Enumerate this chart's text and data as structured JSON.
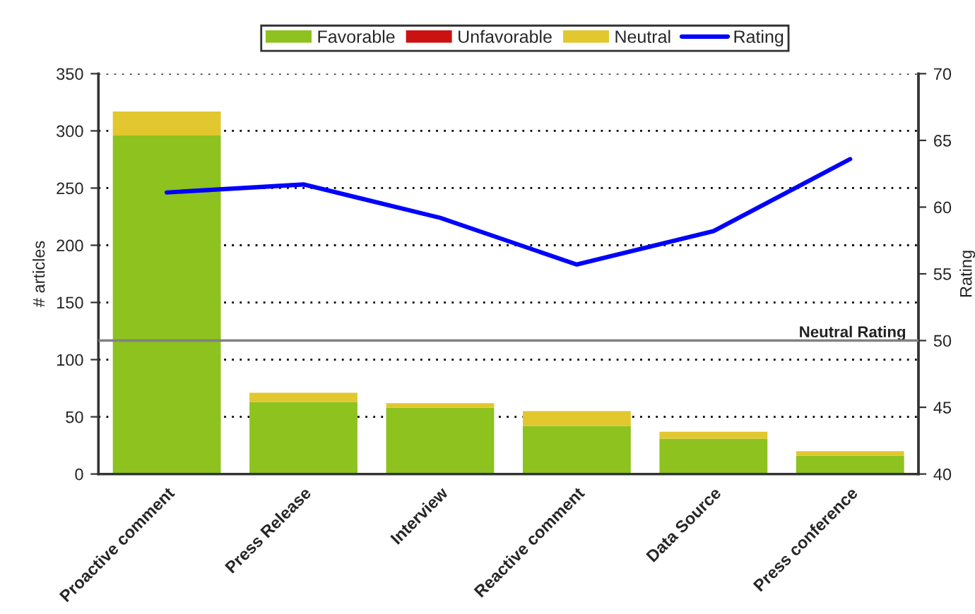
{
  "chart_data": {
    "type": "bar",
    "stacked": true,
    "categories": [
      "Proactive comment",
      "Press Release",
      "Interview",
      "Reactive comment",
      "Data Source",
      "Press conference"
    ],
    "series": [
      {
        "name": "Favorable",
        "color": "#8dc21f",
        "values": [
          296,
          63,
          58,
          42,
          31,
          16
        ]
      },
      {
        "name": "Unfavorable",
        "color": "#cc1111",
        "values": [
          0,
          0,
          0,
          0,
          0,
          0
        ]
      },
      {
        "name": "Neutral",
        "color": "#e2c72e",
        "values": [
          21,
          8,
          4,
          13,
          6,
          4
        ]
      },
      {
        "name": "Rating",
        "type": "line",
        "axis": "y2",
        "color": "#0000ff",
        "values": [
          61.1,
          61.7,
          59.2,
          55.7,
          58.2,
          63.6
        ]
      }
    ],
    "ylabel": "# articles",
    "y2label": "Rating",
    "ylim": [
      0,
      350
    ],
    "yticks": [
      0,
      50,
      100,
      150,
      200,
      250,
      300,
      350
    ],
    "y2lim": [
      40,
      70
    ],
    "y2ticks": [
      40,
      45,
      50,
      55,
      60,
      65,
      70
    ],
    "grid": "y",
    "legend": "top",
    "marker": "none",
    "line_style": "solid",
    "ref_lines": [
      {
        "axis": "y2",
        "value": 50,
        "label": "Neutral Rating",
        "color": "#808080"
      }
    ]
  }
}
